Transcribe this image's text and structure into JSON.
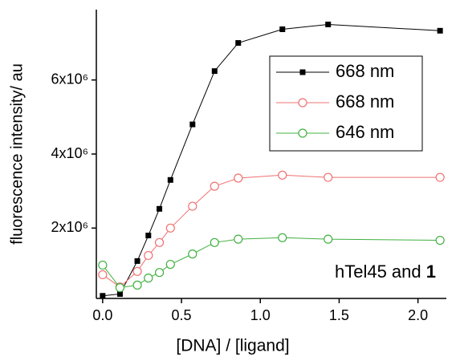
{
  "chart_data": {
    "type": "line",
    "x_label": "[DNA] / [ligand]",
    "y_label": "fluorescence intensity/ au",
    "x": [
      0,
      0.11,
      0.22,
      0.29,
      0.36,
      0.43,
      0.57,
      0.71,
      0.86,
      1.14,
      1.43,
      2.14
    ],
    "series": [
      {
        "name": "668 nm",
        "color": "#000000",
        "marker": "square",
        "values": [
          170000,
          220000,
          1110000,
          1800000,
          2520000,
          3300000,
          4800000,
          6240000,
          7000000,
          7370000,
          7500000,
          7330000
        ]
      },
      {
        "name": "668 nm",
        "color": "#f07070",
        "marker": "circle",
        "values": [
          740000,
          410000,
          830000,
          1260000,
          1610000,
          2000000,
          2590000,
          3130000,
          3350000,
          3430000,
          3370000,
          3370000
        ]
      },
      {
        "name": "646 nm",
        "color": "#40b040",
        "marker": "circle",
        "values": [
          1000000,
          390000,
          460000,
          650000,
          800000,
          1020000,
          1300000,
          1610000,
          1700000,
          1740000,
          1700000,
          1670000
        ]
      }
    ],
    "xlim": [
      -0.04,
      2.18
    ],
    "xticks": [
      {
        "value": 0,
        "label": "0.0"
      },
      0.5,
      {
        "value": 1,
        "label": "1.0"
      },
      1.5,
      {
        "value": 2,
        "label": "2.0"
      }
    ],
    "ylim": [
      100000,
      7900000
    ],
    "yticks": [
      {
        "value": 2000000,
        "label": "2x10⁶"
      },
      {
        "value": 4000000,
        "label": "4x10⁶"
      },
      {
        "value": 6000000,
        "label": "6x10⁶"
      }
    ],
    "legend": "upper right",
    "annotation": [
      "hTel45 and",
      "1"
    ]
  }
}
